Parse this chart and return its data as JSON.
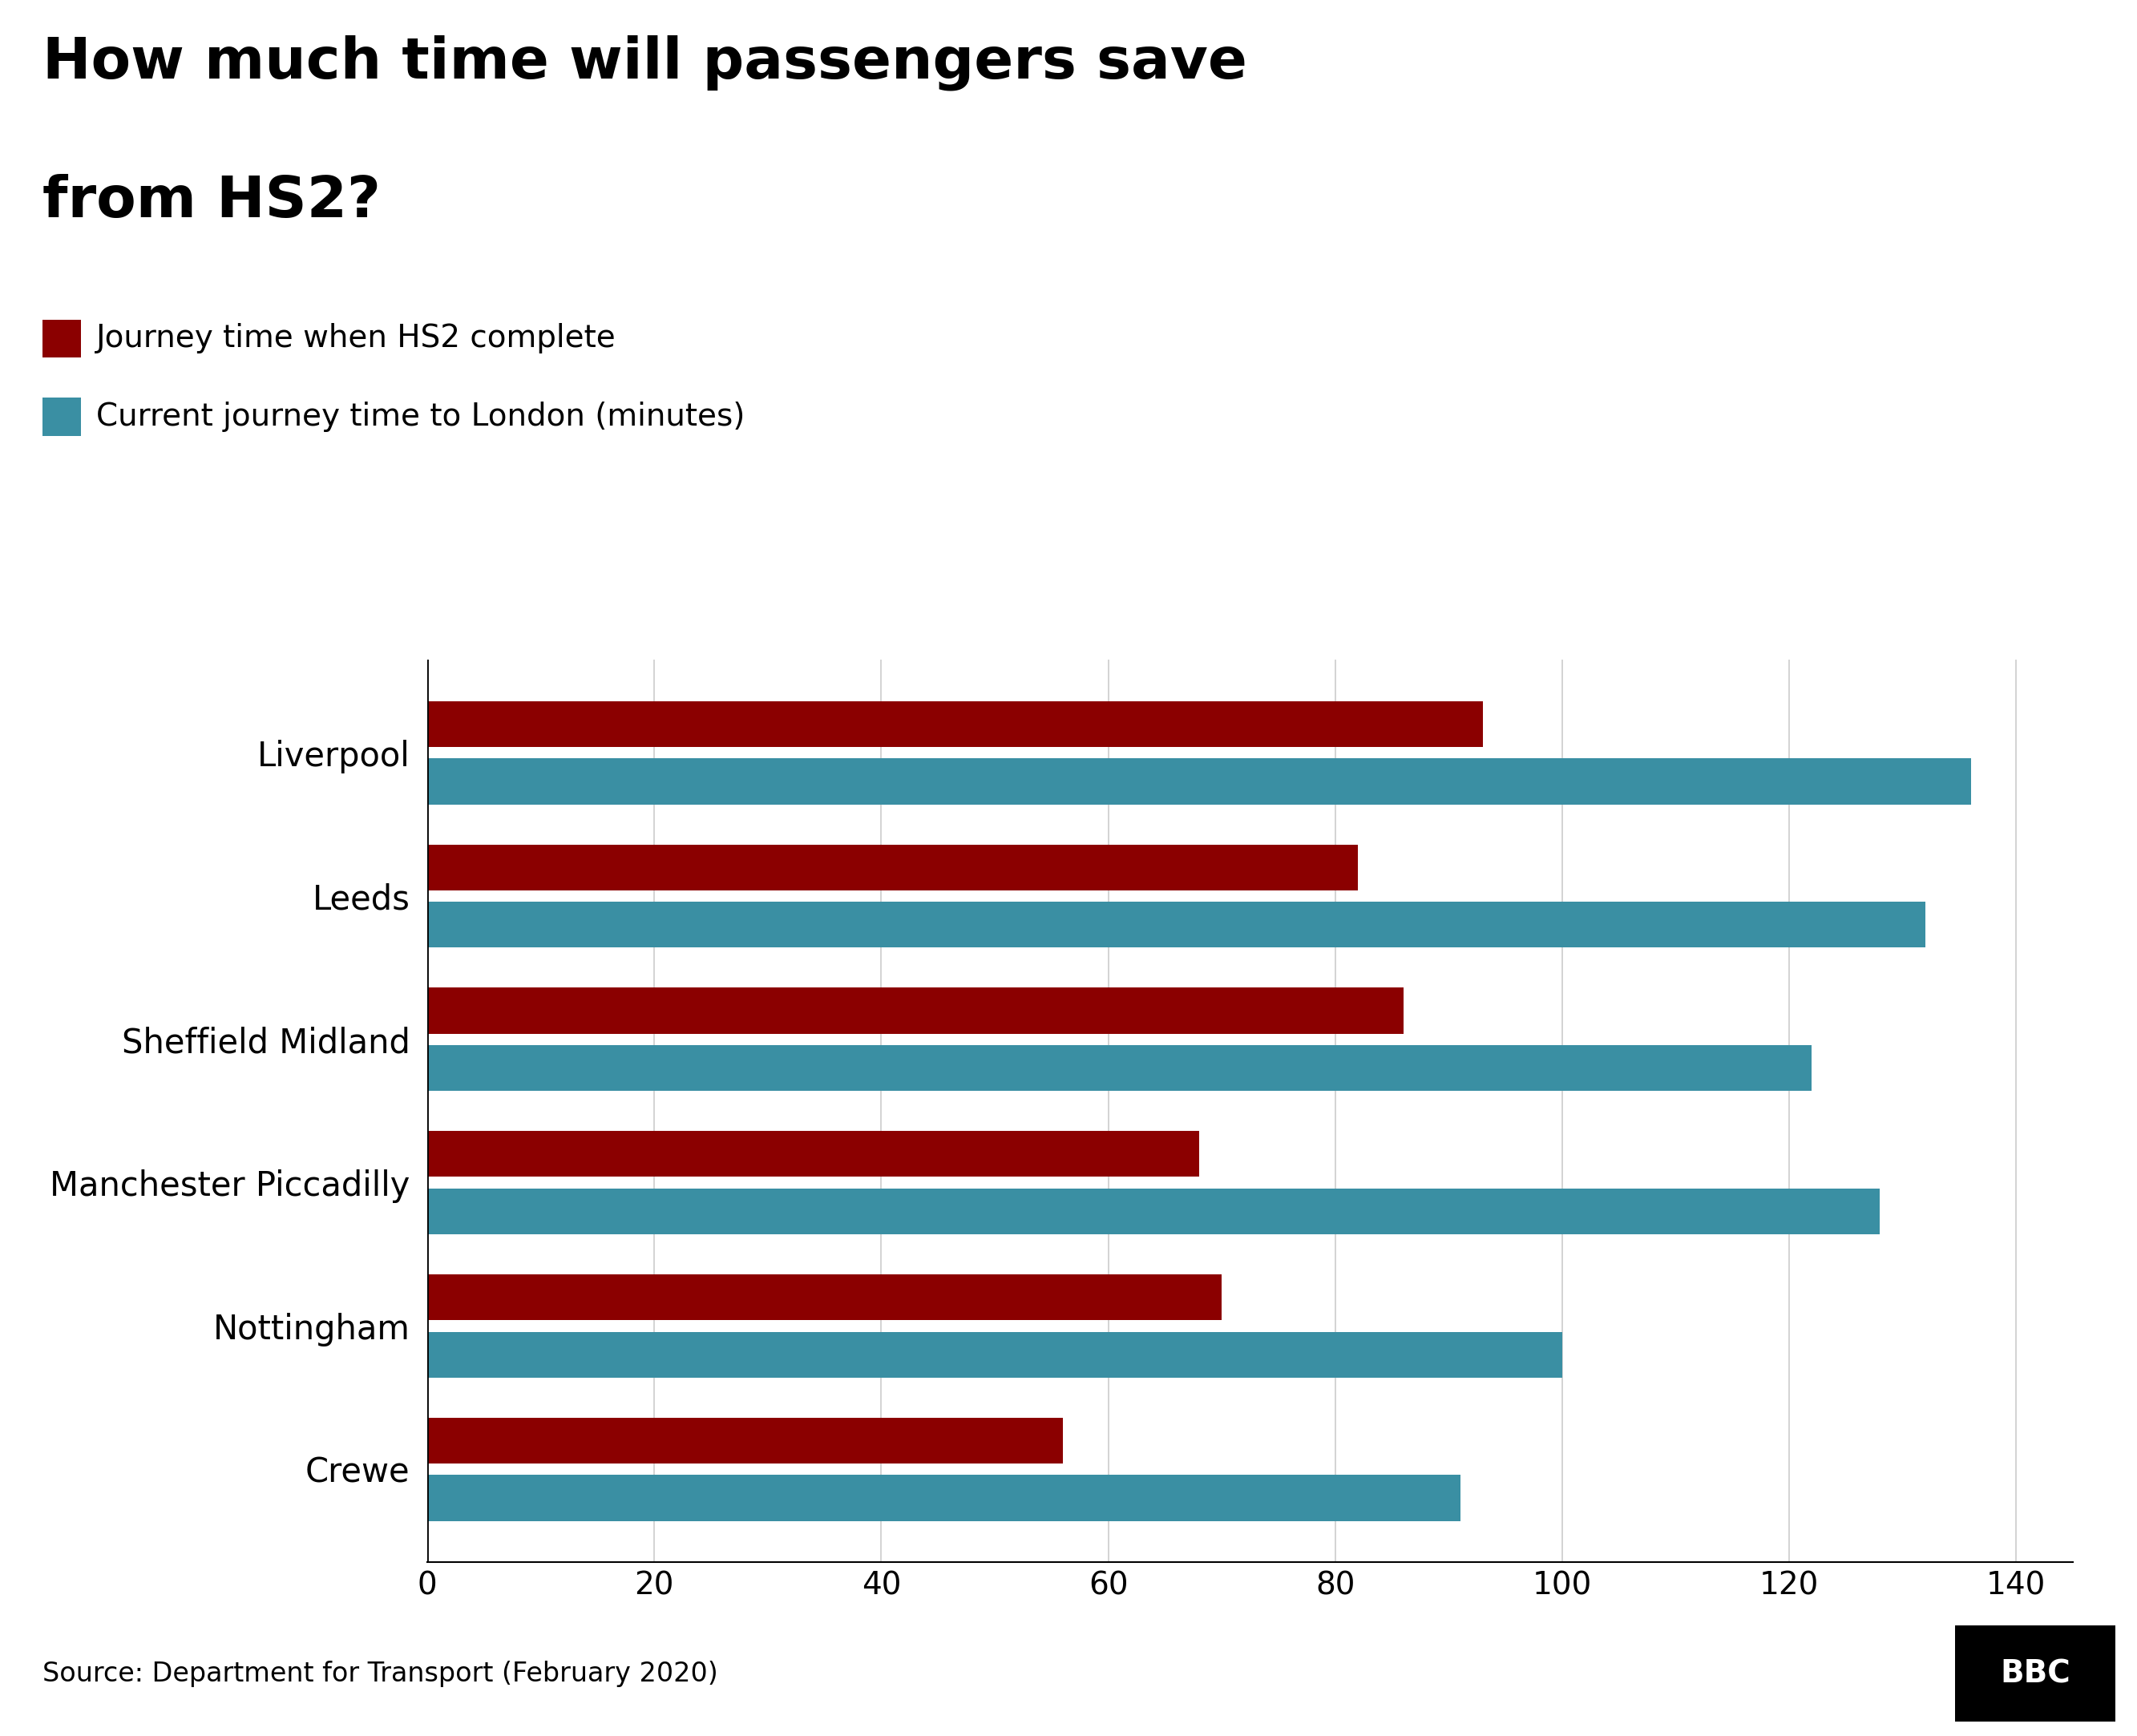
{
  "title_line1": "How much time will passengers save",
  "title_line2": "from HS2?",
  "legend": [
    {
      "label": "Journey time when HS2 complete",
      "color": "#8B0000"
    },
    {
      "label": "Current journey time to London (minutes)",
      "color": "#3A8FA3"
    }
  ],
  "categories": [
    "Liverpool",
    "Leeds",
    "Sheffield Midland",
    "Manchester Piccadilly",
    "Nottingham",
    "Crewe"
  ],
  "hs2_times": [
    93,
    82,
    86,
    68,
    70,
    56
  ],
  "current_times": [
    136,
    132,
    122,
    128,
    100,
    91
  ],
  "hs2_color": "#8B0000",
  "current_color": "#3A8FA3",
  "xlim": [
    0,
    145
  ],
  "xticks": [
    0,
    20,
    40,
    60,
    80,
    100,
    120,
    140
  ],
  "source_text": "Source: Department for Transport (February 2020)",
  "background_color": "#ffffff",
  "footer_bg_color": "#d0d0d0",
  "title_fontsize": 52,
  "legend_fontsize": 28,
  "ylabel_fontsize": 30,
  "tick_fontsize": 28,
  "source_fontsize": 24,
  "bar_height": 0.32,
  "bar_gap": 0.08,
  "bbc_logo_text": "BBC"
}
